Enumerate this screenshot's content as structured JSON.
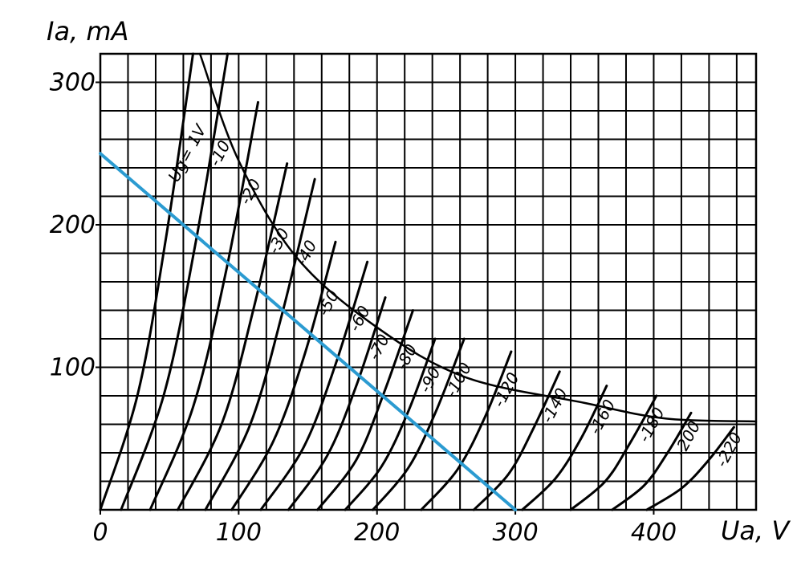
{
  "chart_data": {
    "type": "line",
    "x_label": "Ua, V",
    "y_label": "Ia, mA",
    "xlim": [
      0,
      474
    ],
    "ylim": [
      0,
      320
    ],
    "xticks": [
      0,
      100,
      200,
      300,
      400
    ],
    "yticks": [
      100,
      200,
      300
    ],
    "xgrid": [
      20,
      40,
      60,
      80,
      100,
      120,
      140,
      160,
      180,
      200,
      220,
      240,
      260,
      280,
      300,
      320,
      340,
      360,
      380,
      400,
      420,
      440,
      460
    ],
    "ygrid": [
      20,
      40,
      60,
      80,
      100,
      120,
      140,
      160,
      180,
      200,
      220,
      240,
      260,
      280,
      300
    ],
    "grid": true,
    "series": [
      {
        "name": "Ug= 1V",
        "color": "#000000",
        "x": [
          0,
          27,
          47,
          67
        ],
        "values": [
          0,
          81,
          188,
          320
        ]
      },
      {
        "name": "-10",
        "color": "#000000",
        "x": [
          15,
          46,
          69,
          92
        ],
        "values": [
          0,
          81,
          188,
          320
        ]
      },
      {
        "name": "-20",
        "color": "#000000",
        "x": [
          36,
          67,
          91,
          114
        ],
        "values": [
          0,
          72,
          168,
          286
        ]
      },
      {
        "name": "-30",
        "color": "#000000",
        "x": [
          56,
          88,
          111,
          135
        ],
        "values": [
          0,
          61,
          142,
          243
        ]
      },
      {
        "name": "-40",
        "color": "#000000",
        "x": [
          76,
          108,
          131,
          155
        ],
        "values": [
          0,
          59,
          136,
          232
        ]
      },
      {
        "name": "-50",
        "color": "#000000",
        "x": [
          95,
          125,
          148,
          170
        ],
        "values": [
          0,
          48,
          110,
          188
        ]
      },
      {
        "name": "-60",
        "color": "#000000",
        "x": [
          116,
          147,
          170,
          193
        ],
        "values": [
          0,
          44,
          102,
          174
        ]
      },
      {
        "name": "-70",
        "color": "#000000",
        "x": [
          136,
          164,
          185,
          206
        ],
        "values": [
          0,
          38,
          87,
          149
        ]
      },
      {
        "name": "-80",
        "color": "#000000",
        "x": [
          157,
          185,
          205,
          226
        ],
        "values": [
          0,
          35,
          82,
          140
        ]
      },
      {
        "name": "-90",
        "color": "#000000",
        "x": [
          177,
          203,
          223,
          242
        ],
        "values": [
          0,
          30,
          70,
          120
        ]
      },
      {
        "name": "-100",
        "color": "#000000",
        "x": [
          197,
          223,
          243,
          263
        ],
        "values": [
          0,
          30,
          70,
          120
        ]
      },
      {
        "name": "-120",
        "color": "#000000",
        "x": [
          232,
          258,
          278,
          297
        ],
        "values": [
          0,
          28,
          65,
          111
        ]
      },
      {
        "name": "-140",
        "color": "#000000",
        "x": [
          270,
          295,
          313,
          332
        ],
        "values": [
          0,
          25,
          57,
          97
        ]
      },
      {
        "name": "-160",
        "color": "#000000",
        "x": [
          305,
          329,
          348,
          366
        ],
        "values": [
          0,
          22,
          51,
          87
        ]
      },
      {
        "name": "-180",
        "color": "#000000",
        "x": [
          340,
          365,
          383,
          402
        ],
        "values": [
          0,
          20,
          47,
          80
        ]
      },
      {
        "name": "-200",
        "color": "#000000",
        "x": [
          370,
          393,
          410,
          427
        ],
        "values": [
          0,
          17,
          40,
          68
        ]
      },
      {
        "name": "-220",
        "color": "#000000",
        "x": [
          395,
          420,
          439,
          458
        ],
        "values": [
          0,
          15,
          34,
          58
        ]
      }
    ],
    "limit_curve": {
      "color": "#000000",
      "x": [
        72,
        100,
        142,
        200,
        264,
        350,
        409,
        474
      ],
      "values": [
        320,
        245,
        177,
        128,
        93,
        75,
        64,
        62
      ]
    },
    "load_line": {
      "color": "#2b9bd1",
      "x": [
        0,
        300
      ],
      "values": [
        250,
        0
      ]
    }
  }
}
